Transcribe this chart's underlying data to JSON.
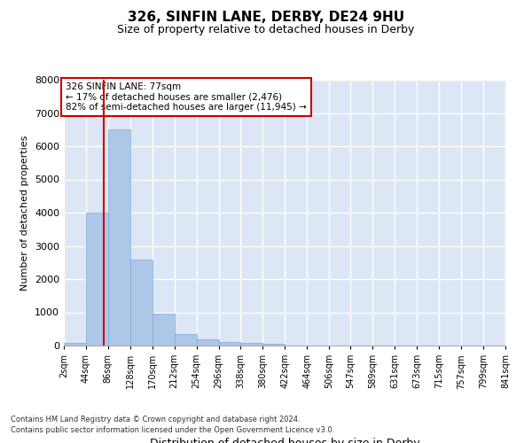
{
  "title": "326, SINFIN LANE, DERBY, DE24 9HU",
  "subtitle": "Size of property relative to detached houses in Derby",
  "xlabel": "Distribution of detached houses by size in Derby",
  "ylabel": "Number of detached properties",
  "annotation_line1": "326 SINFIN LANE: 77sqm",
  "annotation_line2": "← 17% of detached houses are smaller (2,476)",
  "annotation_line3": "82% of semi-detached houses are larger (11,945) →",
  "property_sqm": 77,
  "bin_edges": [
    2,
    44,
    86,
    128,
    170,
    212,
    254,
    296,
    338,
    380,
    422,
    464,
    506,
    547,
    589,
    631,
    673,
    715,
    757,
    799,
    841
  ],
  "bar_heights": [
    70,
    4000,
    6500,
    2600,
    950,
    350,
    175,
    120,
    80,
    45,
    10,
    0,
    0,
    0,
    0,
    0,
    0,
    0,
    0,
    0
  ],
  "bar_color": "#aec6e8",
  "bar_edgecolor": "#7aafd4",
  "vline_color": "#cc0000",
  "vline_x": 77,
  "background_color": "#dce6f5",
  "grid_color": "#ffffff",
  "ylim": [
    0,
    8000
  ],
  "yticks": [
    0,
    1000,
    2000,
    3000,
    4000,
    5000,
    6000,
    7000,
    8000
  ],
  "footer_line1": "Contains HM Land Registry data © Crown copyright and database right 2024.",
  "footer_line2": "Contains public sector information licensed under the Open Government Licence v3.0."
}
